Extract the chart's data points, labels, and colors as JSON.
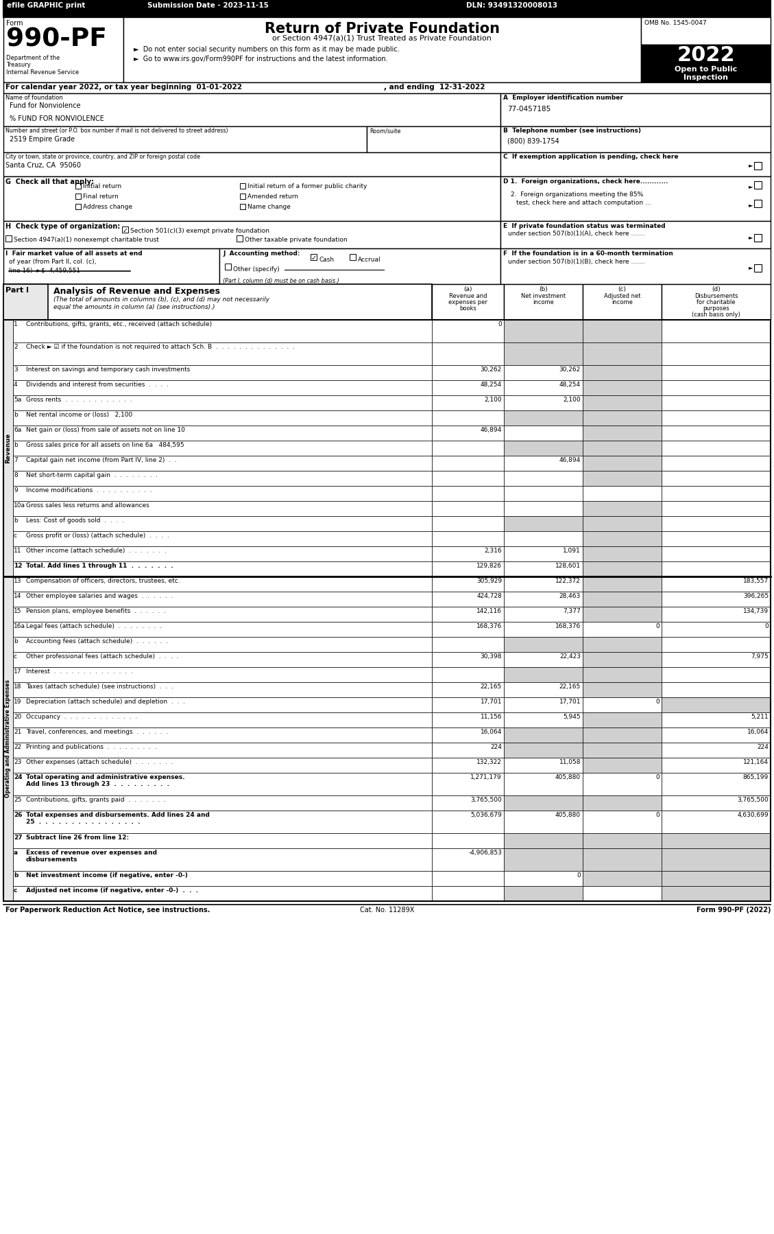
{
  "title_bar": {
    "efile": "efile GRAPHIC print",
    "submission": "Submission Date - 2023-11-15",
    "dln": "DLN: 93491320008013"
  },
  "form_number": "990-PF",
  "form_title": "Return of Private Foundation",
  "form_subtitle": "or Section 4947(a)(1) Trust Treated as Private Foundation",
  "bullet1": "►  Do not enter social security numbers on this form as it may be made public.",
  "bullet2": "►  Go to www.irs.gov/Form990PF for instructions and the latest information.",
  "dept": "Department of the\nTreasury\nInternal Revenue Service",
  "omb": "OMB No. 1545-0047",
  "year": "2022",
  "cal_year_line_1": "For calendar year 2022, or tax year beginning  01-01-2022",
  "cal_year_line_2": ", and ending  12-31-2022",
  "foundation_name": "Fund for Nonviolence",
  "foundation_name2": "% FUND FOR NONVIOLENCE",
  "ein": "77-0457185",
  "street": "2519 Empire Grade",
  "phone": "(800) 839-1754",
  "city": "Santa Cruz, CA  95060",
  "footer_left": "For Paperwork Reduction Act Notice, see instructions.",
  "footer_cat": "Cat. No. 11289X",
  "footer_right": "Form 990-PF (2022)",
  "rows": [
    {
      "num": "1",
      "label": "Contributions, gifts, grants, etc., received (attach schedule)",
      "a": "0",
      "b": "",
      "c": "",
      "d": "",
      "bold": false,
      "twolines": true,
      "shade_b": true,
      "shade_c": true,
      "shade_d": false
    },
    {
      "num": "2",
      "label": "Check ► ☑ if the foundation is not required to attach Sch. B  .  .  .  .  .  .  .  .  .  .  .  .  .  .",
      "a": "",
      "b": "",
      "c": "",
      "d": "",
      "bold": false,
      "twolines": true,
      "shade_b": true,
      "shade_c": true,
      "shade_d": false
    },
    {
      "num": "3",
      "label": "Interest on savings and temporary cash investments",
      "a": "30,262",
      "b": "30,262",
      "c": "",
      "d": "",
      "bold": false,
      "twolines": false,
      "shade_b": false,
      "shade_c": true,
      "shade_d": false
    },
    {
      "num": "4",
      "label": "Dividends and interest from securities  .  .  .  .",
      "a": "48,254",
      "b": "48,254",
      "c": "",
      "d": "",
      "bold": false,
      "twolines": false,
      "shade_b": false,
      "shade_c": true,
      "shade_d": false
    },
    {
      "num": "5a",
      "label": "Gross rents  .  .  .  .  .  .  .  .  .  .  .  .",
      "a": "2,100",
      "b": "2,100",
      "c": "",
      "d": "",
      "bold": false,
      "twolines": false,
      "shade_b": false,
      "shade_c": true,
      "shade_d": false
    },
    {
      "num": "b",
      "label": "Net rental income or (loss)   2,100",
      "a": "",
      "b": "",
      "c": "",
      "d": "",
      "bold": false,
      "twolines": false,
      "shade_b": true,
      "shade_c": true,
      "shade_d": false
    },
    {
      "num": "6a",
      "label": "Net gain or (loss) from sale of assets not on line 10",
      "a": "46,894",
      "b": "",
      "c": "",
      "d": "",
      "bold": false,
      "twolines": false,
      "shade_b": false,
      "shade_c": true,
      "shade_d": false
    },
    {
      "num": "b",
      "label": "Gross sales price for all assets on line 6a   484,595",
      "a": "",
      "b": "",
      "c": "",
      "d": "",
      "bold": false,
      "twolines": false,
      "shade_b": true,
      "shade_c": true,
      "shade_d": false
    },
    {
      "num": "7",
      "label": "Capital gain net income (from Part IV, line 2)  .  .",
      "a": "",
      "b": "46,894",
      "c": "",
      "d": "",
      "bold": false,
      "twolines": false,
      "shade_b": false,
      "shade_c": true,
      "shade_d": false
    },
    {
      "num": "8",
      "label": "Net short-term capital gain  .  .  .  .  .  .  .  .",
      "a": "",
      "b": "",
      "c": "",
      "d": "",
      "bold": false,
      "twolines": false,
      "shade_b": false,
      "shade_c": true,
      "shade_d": false
    },
    {
      "num": "9",
      "label": "Income modifications  .  .  .  .  .  .  .  .  .  .",
      "a": "",
      "b": "",
      "c": "",
      "d": "",
      "bold": false,
      "twolines": false,
      "shade_b": false,
      "shade_c": false,
      "shade_d": false
    },
    {
      "num": "10a",
      "label": "Gross sales less returns and allowances",
      "a": "",
      "b": "",
      "c": "",
      "d": "",
      "bold": false,
      "twolines": false,
      "shade_b": false,
      "shade_c": true,
      "shade_d": false
    },
    {
      "num": "b",
      "label": "Less: Cost of goods sold  .  .  .  .",
      "a": "",
      "b": "",
      "c": "",
      "d": "",
      "bold": false,
      "twolines": false,
      "shade_b": true,
      "shade_c": true,
      "shade_d": false
    },
    {
      "num": "c",
      "label": "Gross profit or (loss) (attach schedule)  .  .  .  .",
      "a": "",
      "b": "",
      "c": "",
      "d": "",
      "bold": false,
      "twolines": false,
      "shade_b": false,
      "shade_c": true,
      "shade_d": false
    },
    {
      "num": "11",
      "label": "Other income (attach schedule)  .  .  .  .  .  .  .",
      "a": "2,316",
      "b": "1,091",
      "c": "",
      "d": "",
      "bold": false,
      "twolines": false,
      "shade_b": false,
      "shade_c": true,
      "shade_d": false
    },
    {
      "num": "12",
      "label": "Total. Add lines 1 through 11  .  .  .  .  .  .  .",
      "a": "129,826",
      "b": "128,601",
      "c": "",
      "d": "",
      "bold": true,
      "twolines": false,
      "shade_b": false,
      "shade_c": true,
      "shade_d": false
    },
    {
      "num": "13",
      "label": "Compensation of officers, directors, trustees, etc.",
      "a": "305,929",
      "b": "122,372",
      "c": "",
      "d": "183,557",
      "bold": false,
      "twolines": false,
      "shade_b": false,
      "shade_c": true,
      "shade_d": false
    },
    {
      "num": "14",
      "label": "Other employee salaries and wages  .  .  .  .  .  .",
      "a": "424,728",
      "b": "28,463",
      "c": "",
      "d": "396,265",
      "bold": false,
      "twolines": false,
      "shade_b": false,
      "shade_c": true,
      "shade_d": false
    },
    {
      "num": "15",
      "label": "Pension plans, employee benefits  .  .  .  .  .  .",
      "a": "142,116",
      "b": "7,377",
      "c": "",
      "d": "134,739",
      "bold": false,
      "twolines": false,
      "shade_b": false,
      "shade_c": true,
      "shade_d": false
    },
    {
      "num": "16a",
      "label": "Legal fees (attach schedule)  .  .  .  .  .  .  .  .",
      "a": "168,376",
      "b": "168,376",
      "c": "0",
      "d": "0",
      "bold": false,
      "twolines": false,
      "shade_b": false,
      "shade_c": false,
      "shade_d": false
    },
    {
      "num": "b",
      "label": "Accounting fees (attach schedule)  .  .  .  .  .  .",
      "a": "",
      "b": "",
      "c": "",
      "d": "",
      "bold": false,
      "twolines": false,
      "shade_b": true,
      "shade_c": true,
      "shade_d": false
    },
    {
      "num": "c",
      "label": "Other professional fees (attach schedule)  .  .  .  .",
      "a": "30,398",
      "b": "22,423",
      "c": "",
      "d": "7,975",
      "bold": false,
      "twolines": false,
      "shade_b": false,
      "shade_c": true,
      "shade_d": false
    },
    {
      "num": "17",
      "label": "Interest  .  .  .  .  .  .  .  .  .  .  .  .  .  .",
      "a": "",
      "b": "",
      "c": "",
      "d": "",
      "bold": false,
      "twolines": false,
      "shade_b": true,
      "shade_c": true,
      "shade_d": false
    },
    {
      "num": "18",
      "label": "Taxes (attach schedule) (see instructions)  .  .  .",
      "a": "22,165",
      "b": "22,165",
      "c": "",
      "d": "",
      "bold": false,
      "twolines": false,
      "shade_b": false,
      "shade_c": true,
      "shade_d": false
    },
    {
      "num": "19",
      "label": "Depreciation (attach schedule) and depletion  .  .  .",
      "a": "17,701",
      "b": "17,701",
      "c": "0",
      "d": "",
      "bold": false,
      "twolines": false,
      "shade_b": false,
      "shade_c": false,
      "shade_d": true
    },
    {
      "num": "20",
      "label": "Occupancy  .  .  .  .  .  .  .  .  .  .  .  .  .",
      "a": "11,156",
      "b": "5,945",
      "c": "",
      "d": "5,211",
      "bold": false,
      "twolines": false,
      "shade_b": false,
      "shade_c": true,
      "shade_d": false
    },
    {
      "num": "21",
      "label": "Travel, conferences, and meetings  .  .  .  .  .  .",
      "a": "16,064",
      "b": "",
      "c": "",
      "d": "16,064",
      "bold": false,
      "twolines": false,
      "shade_b": true,
      "shade_c": true,
      "shade_d": false
    },
    {
      "num": "22",
      "label": "Printing and publications  .  .  .  .  .  .  .  .  .",
      "a": "224",
      "b": "",
      "c": "",
      "d": "224",
      "bold": false,
      "twolines": false,
      "shade_b": true,
      "shade_c": true,
      "shade_d": false
    },
    {
      "num": "23",
      "label": "Other expenses (attach schedule)  .  .  .  .  .  .  .",
      "a": "132,322",
      "b": "11,058",
      "c": "",
      "d": "121,164",
      "bold": false,
      "twolines": false,
      "shade_b": false,
      "shade_c": true,
      "shade_d": false
    },
    {
      "num": "24",
      "label": "Total operating and administrative expenses.\nAdd lines 13 through 23  .  .  .  .  .  .  .  .  .",
      "a": "1,271,179",
      "b": "405,880",
      "c": "0",
      "d": "865,199",
      "bold": true,
      "twolines": true,
      "shade_b": false,
      "shade_c": false,
      "shade_d": false
    },
    {
      "num": "25",
      "label": "Contributions, gifts, grants paid  .  .  .  .  .  .  .",
      "a": "3,765,500",
      "b": "",
      "c": "",
      "d": "3,765,500",
      "bold": false,
      "twolines": false,
      "shade_b": true,
      "shade_c": true,
      "shade_d": false
    },
    {
      "num": "26",
      "label": "Total expenses and disbursements. Add lines 24 and\n25  .  .  .  .  .  .  .  .  .  .  .  .  .  .  .  .",
      "a": "5,036,679",
      "b": "405,880",
      "c": "0",
      "d": "4,630,699",
      "bold": true,
      "twolines": true,
      "shade_b": false,
      "shade_c": false,
      "shade_d": false
    },
    {
      "num": "27",
      "label": "Subtract line 26 from line 12:",
      "a": "",
      "b": "",
      "c": "",
      "d": "",
      "bold": true,
      "twolines": false,
      "shade_b": true,
      "shade_c": true,
      "shade_d": true
    },
    {
      "num": "a",
      "label": "Excess of revenue over expenses and\ndisbursements",
      "a": "-4,906,853",
      "b": "",
      "c": "",
      "d": "",
      "bold": true,
      "twolines": true,
      "shade_b": true,
      "shade_c": true,
      "shade_d": true
    },
    {
      "num": "b",
      "label": "Net investment income (if negative, enter -0-)",
      "a": "",
      "b": "0",
      "c": "",
      "d": "",
      "bold": true,
      "twolines": false,
      "shade_b": false,
      "shade_c": true,
      "shade_d": true
    },
    {
      "num": "c",
      "label": "Adjusted net income (if negative, enter -0-)  .  .  .",
      "a": "",
      "b": "",
      "c": "",
      "d": "",
      "bold": true,
      "twolines": false,
      "shade_b": true,
      "shade_c": false,
      "shade_d": true
    }
  ]
}
